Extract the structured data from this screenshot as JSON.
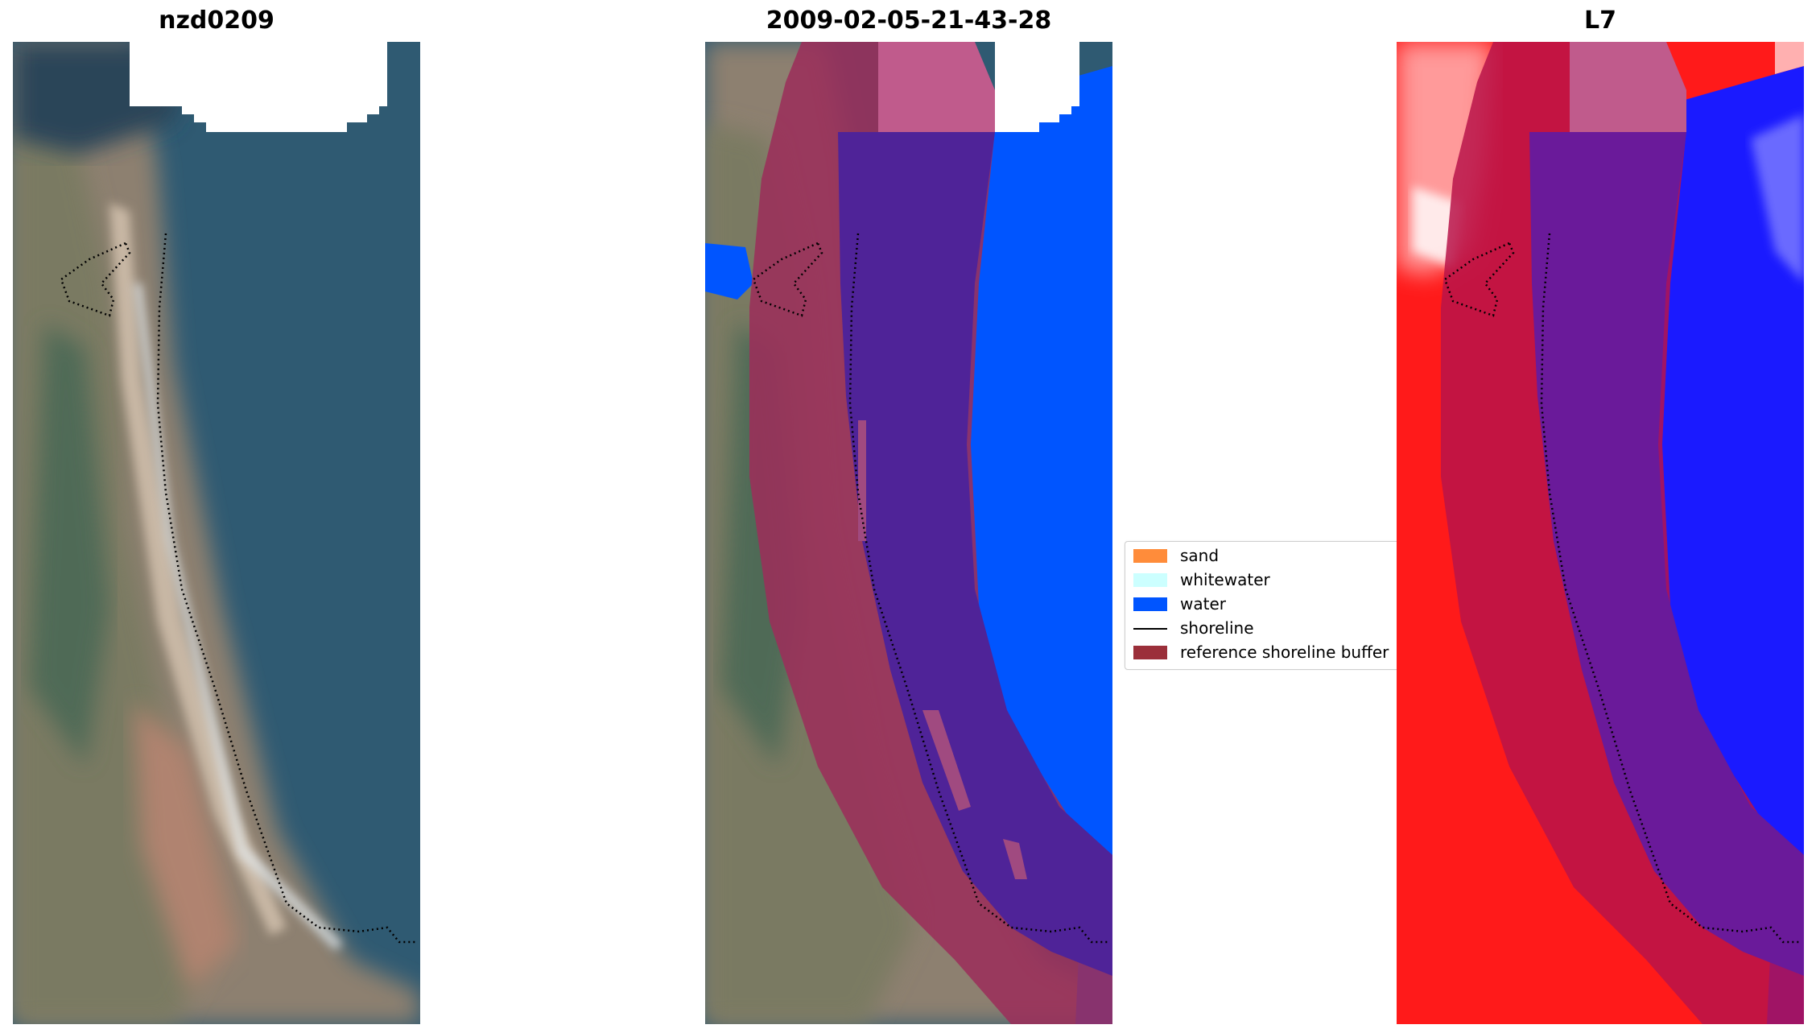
{
  "panels": [
    {
      "title": "nzd0209"
    },
    {
      "title": "2009-02-05-21-43-28"
    },
    {
      "title": "L7"
    }
  ],
  "legend": {
    "items": [
      {
        "label": "sand",
        "color": "#ff8c3a"
      },
      {
        "label": "whitewater",
        "color": "#ccffff"
      },
      {
        "label": "water",
        "color": "#0055ff"
      },
      {
        "label": "shoreline",
        "color": "#000000"
      },
      {
        "label": "reference shoreline buffer",
        "color": "#9b2f3a"
      }
    ]
  },
  "colors": {
    "buffer_overlay": "#9b2f5a",
    "water_class": "#0055ff",
    "sea_rgb": "#2e5a72",
    "land_rgb": "#9c8a76",
    "index_high": "#ff1a1a",
    "index_low": "#1a1aff"
  }
}
